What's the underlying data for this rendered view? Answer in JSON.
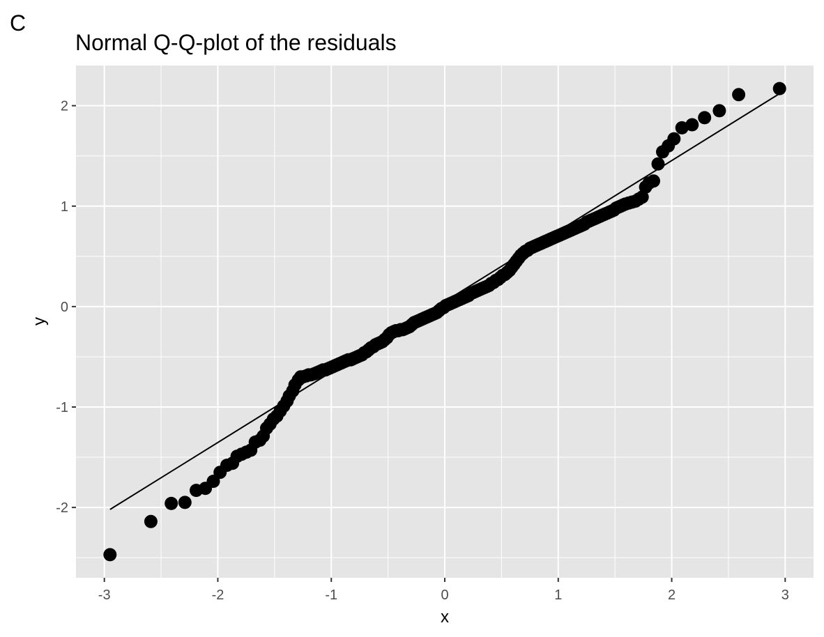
{
  "tag": "C",
  "chart_data": {
    "type": "scatter",
    "title": "Normal Q-Q-plot of the residuals",
    "xlabel": "x",
    "ylabel": "y",
    "xlim": [
      -3.25,
      3.25
    ],
    "ylim": [
      -2.7,
      2.4
    ],
    "x_ticks": [
      -3,
      -2,
      -1,
      0,
      1,
      2,
      3
    ],
    "y_ticks": [
      -2,
      -1,
      0,
      1,
      2
    ],
    "grid": true,
    "legend": "none",
    "colors": {
      "panel": "#e5e5e5",
      "grid": "#ffffff",
      "points": "#000000",
      "line": "#000000",
      "tick_text": "#4d4d4d"
    },
    "reference_line": {
      "x": [
        -2.95,
        2.95
      ],
      "y": [
        -2.02,
        2.12
      ]
    },
    "points": [
      [
        -2.95,
        -2.47
      ],
      [
        -2.59,
        -2.14
      ],
      [
        -2.41,
        -1.96
      ],
      [
        -2.29,
        -1.95
      ],
      [
        -2.19,
        -1.83
      ],
      [
        -2.11,
        -1.81
      ],
      [
        -2.04,
        -1.74
      ],
      [
        -1.98,
        -1.65
      ],
      [
        -1.92,
        -1.58
      ],
      [
        -1.87,
        -1.56
      ],
      [
        -1.83,
        -1.49
      ],
      [
        -1.79,
        -1.47
      ],
      [
        -1.75,
        -1.45
      ],
      [
        -1.71,
        -1.43
      ],
      [
        -1.67,
        -1.35
      ],
      [
        -1.63,
        -1.33
      ],
      [
        -1.6,
        -1.29
      ],
      [
        -1.57,
        -1.21
      ],
      [
        -1.54,
        -1.17
      ],
      [
        -1.51,
        -1.12
      ],
      [
        -1.48,
        -1.09
      ],
      [
        -1.45,
        -1.04
      ],
      [
        -1.42,
        -0.99
      ],
      [
        -1.39,
        -0.94
      ],
      [
        -1.37,
        -0.89
      ],
      [
        -1.34,
        -0.84
      ],
      [
        -1.32,
        -0.78
      ],
      [
        -1.29,
        -0.73
      ],
      [
        -1.27,
        -0.7
      ],
      [
        -1.25,
        -0.7
      ],
      [
        -1.22,
        -0.69
      ],
      [
        -1.2,
        -0.68
      ],
      [
        -1.18,
        -0.68
      ],
      [
        -1.15,
        -0.67
      ],
      [
        -1.13,
        -0.66
      ],
      [
        -1.11,
        -0.65
      ],
      [
        -1.09,
        -0.64
      ],
      [
        -1.07,
        -0.63
      ],
      [
        -1.05,
        -0.63
      ],
      [
        -1.03,
        -0.62
      ],
      [
        -1.01,
        -0.61
      ],
      [
        -0.99,
        -0.6
      ],
      [
        -0.97,
        -0.59
      ],
      [
        -0.95,
        -0.58
      ],
      [
        -0.93,
        -0.57
      ],
      [
        -0.91,
        -0.56
      ],
      [
        -0.89,
        -0.55
      ],
      [
        -0.87,
        -0.54
      ],
      [
        -0.85,
        -0.53
      ],
      [
        -0.83,
        -0.53
      ],
      [
        -0.81,
        -0.52
      ],
      [
        -0.79,
        -0.51
      ],
      [
        -0.77,
        -0.5
      ],
      [
        -0.75,
        -0.49
      ],
      [
        -0.73,
        -0.48
      ],
      [
        -0.71,
        -0.46
      ],
      [
        -0.69,
        -0.45
      ],
      [
        -0.67,
        -0.43
      ],
      [
        -0.65,
        -0.41
      ],
      [
        -0.63,
        -0.4
      ],
      [
        -0.61,
        -0.38
      ],
      [
        -0.59,
        -0.37
      ],
      [
        -0.57,
        -0.36
      ],
      [
        -0.55,
        -0.35
      ],
      [
        -0.53,
        -0.33
      ],
      [
        -0.51,
        -0.31
      ],
      [
        -0.49,
        -0.28
      ],
      [
        -0.47,
        -0.26
      ],
      [
        -0.45,
        -0.25
      ],
      [
        -0.43,
        -0.24
      ],
      [
        -0.41,
        -0.24
      ],
      [
        -0.39,
        -0.23
      ],
      [
        -0.37,
        -0.23
      ],
      [
        -0.35,
        -0.22
      ],
      [
        -0.33,
        -0.21
      ],
      [
        -0.31,
        -0.2
      ],
      [
        -0.29,
        -0.18
      ],
      [
        -0.27,
        -0.16
      ],
      [
        -0.25,
        -0.15
      ],
      [
        -0.23,
        -0.14
      ],
      [
        -0.21,
        -0.13
      ],
      [
        -0.19,
        -0.12
      ],
      [
        -0.17,
        -0.11
      ],
      [
        -0.15,
        -0.1
      ],
      [
        -0.13,
        -0.09
      ],
      [
        -0.11,
        -0.08
      ],
      [
        -0.09,
        -0.07
      ],
      [
        -0.07,
        -0.06
      ],
      [
        -0.05,
        -0.04
      ],
      [
        -0.03,
        -0.02
      ],
      [
        -0.01,
        -0.01
      ],
      [
        0.01,
        0.01
      ],
      [
        0.03,
        0.02
      ],
      [
        0.05,
        0.03
      ],
      [
        0.07,
        0.04
      ],
      [
        0.09,
        0.05
      ],
      [
        0.11,
        0.06
      ],
      [
        0.13,
        0.07
      ],
      [
        0.15,
        0.08
      ],
      [
        0.17,
        0.09
      ],
      [
        0.19,
        0.1
      ],
      [
        0.21,
        0.11
      ],
      [
        0.23,
        0.13
      ],
      [
        0.25,
        0.14
      ],
      [
        0.27,
        0.15
      ],
      [
        0.29,
        0.16
      ],
      [
        0.31,
        0.17
      ],
      [
        0.33,
        0.18
      ],
      [
        0.35,
        0.19
      ],
      [
        0.37,
        0.2
      ],
      [
        0.39,
        0.21
      ],
      [
        0.41,
        0.23
      ],
      [
        0.43,
        0.24
      ],
      [
        0.45,
        0.26
      ],
      [
        0.47,
        0.27
      ],
      [
        0.49,
        0.29
      ],
      [
        0.51,
        0.31
      ],
      [
        0.53,
        0.32
      ],
      [
        0.55,
        0.34
      ],
      [
        0.57,
        0.36
      ],
      [
        0.59,
        0.39
      ],
      [
        0.61,
        0.42
      ],
      [
        0.63,
        0.45
      ],
      [
        0.65,
        0.48
      ],
      [
        0.67,
        0.51
      ],
      [
        0.69,
        0.53
      ],
      [
        0.71,
        0.55
      ],
      [
        0.73,
        0.56
      ],
      [
        0.75,
        0.58
      ],
      [
        0.77,
        0.59
      ],
      [
        0.79,
        0.6
      ],
      [
        0.81,
        0.61
      ],
      [
        0.83,
        0.62
      ],
      [
        0.85,
        0.63
      ],
      [
        0.87,
        0.64
      ],
      [
        0.89,
        0.65
      ],
      [
        0.91,
        0.66
      ],
      [
        0.93,
        0.67
      ],
      [
        0.95,
        0.68
      ],
      [
        0.97,
        0.69
      ],
      [
        0.99,
        0.7
      ],
      [
        1.01,
        0.71
      ],
      [
        1.03,
        0.72
      ],
      [
        1.05,
        0.73
      ],
      [
        1.07,
        0.74
      ],
      [
        1.09,
        0.75
      ],
      [
        1.11,
        0.76
      ],
      [
        1.13,
        0.77
      ],
      [
        1.15,
        0.78
      ],
      [
        1.17,
        0.79
      ],
      [
        1.19,
        0.8
      ],
      [
        1.21,
        0.81
      ],
      [
        1.23,
        0.82
      ],
      [
        1.25,
        0.84
      ],
      [
        1.27,
        0.85
      ],
      [
        1.29,
        0.86
      ],
      [
        1.31,
        0.87
      ],
      [
        1.33,
        0.88
      ],
      [
        1.35,
        0.89
      ],
      [
        1.37,
        0.9
      ],
      [
        1.39,
        0.91
      ],
      [
        1.41,
        0.92
      ],
      [
        1.43,
        0.93
      ],
      [
        1.45,
        0.94
      ],
      [
        1.47,
        0.95
      ],
      [
        1.49,
        0.96
      ],
      [
        1.51,
        0.98
      ],
      [
        1.53,
        0.99
      ],
      [
        1.55,
        1.0
      ],
      [
        1.57,
        1.01
      ],
      [
        1.59,
        1.02
      ],
      [
        1.62,
        1.03
      ],
      [
        1.65,
        1.04
      ],
      [
        1.68,
        1.05
      ],
      [
        1.71,
        1.07
      ],
      [
        1.74,
        1.09
      ],
      [
        1.77,
        1.19
      ],
      [
        1.8,
        1.23
      ],
      [
        1.84,
        1.25
      ],
      [
        1.88,
        1.42
      ],
      [
        1.92,
        1.54
      ],
      [
        1.97,
        1.6
      ],
      [
        2.02,
        1.67
      ],
      [
        2.09,
        1.78
      ],
      [
        2.18,
        1.81
      ],
      [
        2.29,
        1.88
      ],
      [
        2.42,
        1.95
      ],
      [
        2.59,
        2.11
      ],
      [
        2.95,
        2.17
      ]
    ]
  }
}
